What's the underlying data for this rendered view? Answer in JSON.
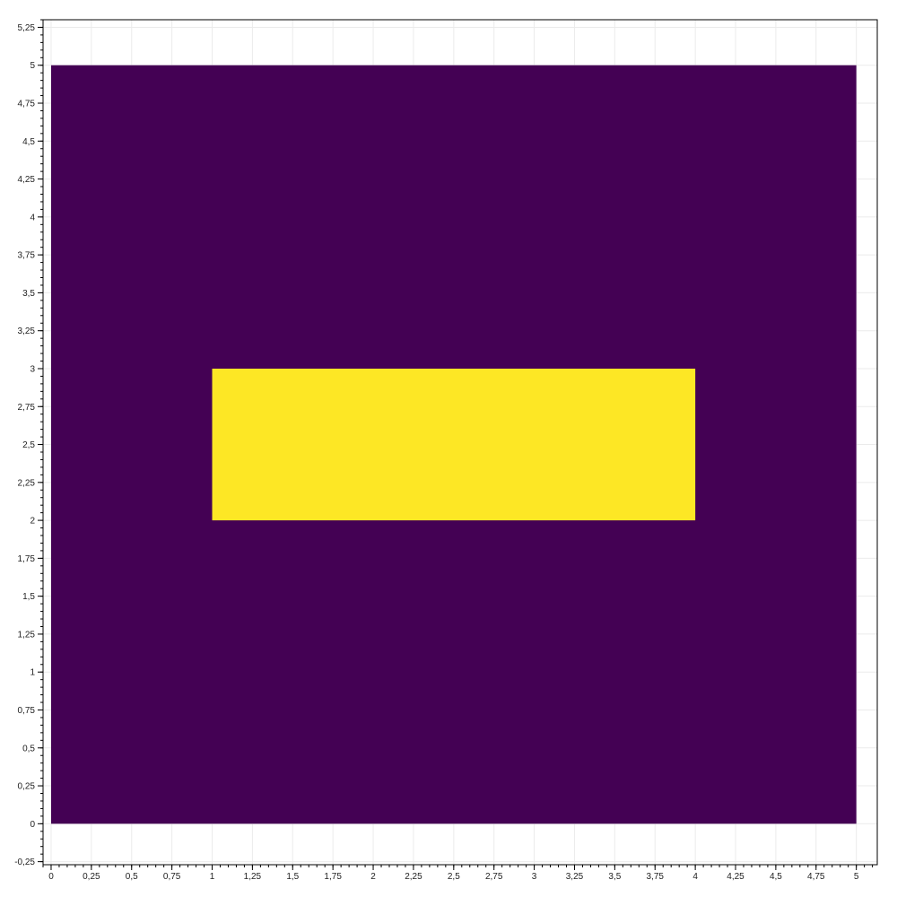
{
  "chart_data": {
    "type": "heatmap",
    "title": "",
    "xlabel": "",
    "ylabel": "",
    "xlim": [
      -0.05,
      5.13
    ],
    "ylim": [
      -0.27,
      5.3
    ],
    "grid": true,
    "x_major_step": 0.25,
    "y_major_step": 0.25,
    "minor_per_major": 5,
    "decimal_separator": ",",
    "x_ticks": [
      "0",
      "0,25",
      "0,5",
      "0,75",
      "1",
      "1,25",
      "1,5",
      "1,75",
      "2",
      "2,25",
      "2,5",
      "2,75",
      "3",
      "3,25",
      "3,5",
      "3,75",
      "4",
      "4,25",
      "4,5",
      "4,75",
      "5"
    ],
    "y_ticks": [
      "-0,25",
      "0",
      "0,25",
      "0,5",
      "0,75",
      "1",
      "1,25",
      "1,5",
      "1,75",
      "2",
      "2,25",
      "2,5",
      "2,75",
      "3",
      "3,25",
      "3,5",
      "3,75",
      "4",
      "4,25",
      "4,5",
      "4,75",
      "5",
      "5,25"
    ],
    "cells": [
      {
        "x0": 0,
        "x1": 5,
        "y0": 0,
        "y1": 5,
        "value": 0,
        "color": "#440154"
      },
      {
        "x0": 1,
        "x1": 4,
        "y0": 2,
        "y1": 3,
        "value": 1,
        "color": "#fde725"
      }
    ]
  }
}
